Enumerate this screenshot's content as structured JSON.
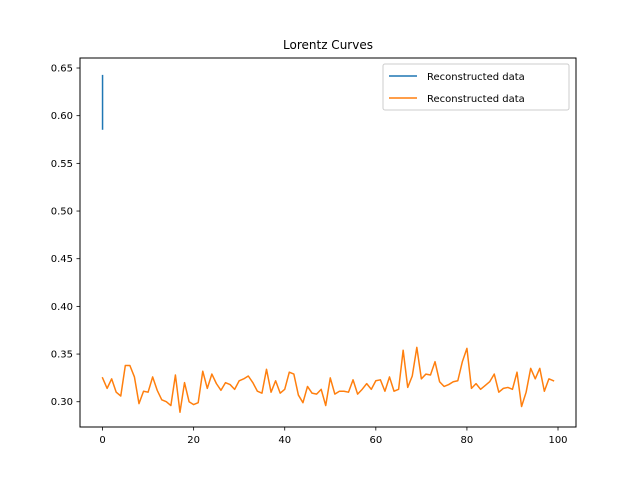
{
  "chart_data": {
    "type": "line",
    "title": "Lorentz Curves",
    "xlabel": "",
    "ylabel": "",
    "xlim": [
      -4.95,
      103.95
    ],
    "ylim": [
      0.2735,
      0.6605
    ],
    "xticks": [
      0,
      20,
      40,
      60,
      80,
      100
    ],
    "yticks": [
      0.3,
      0.35,
      0.4,
      0.45,
      0.5,
      0.55,
      0.6,
      0.65
    ],
    "grid": false,
    "legend_position": "top-right",
    "series": [
      {
        "name": "Reconstructed data",
        "color": "#1f77b4",
        "x": [
          0,
          0,
          0,
          0,
          0,
          0,
          0
        ],
        "y": [
          0.642,
          0.625,
          0.61,
          0.6,
          0.595,
          0.59,
          0.586
        ]
      },
      {
        "name": "Reconstructed data",
        "color": "#ff7f0e",
        "x": [
          0,
          1,
          2,
          3,
          4,
          5,
          6,
          7,
          8,
          9,
          10,
          11,
          12,
          13,
          14,
          15,
          16,
          17,
          18,
          19,
          20,
          21,
          22,
          23,
          24,
          25,
          26,
          27,
          28,
          29,
          30,
          31,
          32,
          33,
          34,
          35,
          36,
          37,
          38,
          39,
          40,
          41,
          42,
          43,
          44,
          45,
          46,
          47,
          48,
          49,
          50,
          51,
          52,
          53,
          54,
          55,
          56,
          57,
          58,
          59,
          60,
          61,
          62,
          63,
          64,
          65,
          66,
          67,
          68,
          69,
          70,
          71,
          72,
          73,
          74,
          75,
          76,
          77,
          78,
          79,
          80,
          81,
          82,
          83,
          84,
          85,
          86,
          87,
          88,
          89,
          90,
          91,
          92,
          93,
          94,
          95,
          96,
          97,
          98,
          99
        ],
        "y": [
          0.325,
          0.314,
          0.324,
          0.31,
          0.306,
          0.338,
          0.338,
          0.326,
          0.298,
          0.311,
          0.31,
          0.326,
          0.312,
          0.302,
          0.3,
          0.296,
          0.328,
          0.289,
          0.32,
          0.3,
          0.297,
          0.299,
          0.332,
          0.314,
          0.329,
          0.319,
          0.312,
          0.32,
          0.318,
          0.313,
          0.322,
          0.324,
          0.327,
          0.32,
          0.311,
          0.309,
          0.334,
          0.31,
          0.322,
          0.309,
          0.313,
          0.331,
          0.329,
          0.307,
          0.299,
          0.316,
          0.309,
          0.308,
          0.313,
          0.296,
          0.325,
          0.308,
          0.311,
          0.311,
          0.31,
          0.323,
          0.308,
          0.313,
          0.319,
          0.313,
          0.322,
          0.323,
          0.311,
          0.326,
          0.311,
          0.313,
          0.354,
          0.315,
          0.327,
          0.357,
          0.324,
          0.329,
          0.328,
          0.342,
          0.321,
          0.316,
          0.318,
          0.321,
          0.322,
          0.342,
          0.356,
          0.314,
          0.319,
          0.313,
          0.317,
          0.321,
          0.329,
          0.31,
          0.314,
          0.315,
          0.313,
          0.331,
          0.295,
          0.31,
          0.335,
          0.324,
          0.335,
          0.311,
          0.324,
          0.322
        ]
      }
    ]
  }
}
